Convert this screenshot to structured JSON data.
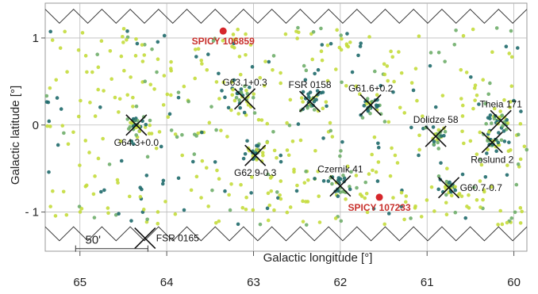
{
  "chart_data": {
    "type": "scatter",
    "xlabel": "Galactic longitude [°]",
    "ylabel": "Galactic latitude [°]",
    "xlim": [
      65.4,
      59.85
    ],
    "ylim": [
      -1.45,
      1.4
    ],
    "x_ticks": [
      65,
      64,
      63,
      62,
      61,
      60
    ],
    "y_ticks": [
      {
        "value": 1,
        "label": "1"
      },
      {
        "value": 0,
        "label": "0"
      },
      {
        "value": -1,
        "label": "- 1"
      }
    ],
    "grid": true,
    "clusters": [
      {
        "name": "G64.3+0.0",
        "l": 64.35,
        "b": 0.0,
        "label_side": "below"
      },
      {
        "name": "G63.1+0.3",
        "l": 63.1,
        "b": 0.3,
        "label_side": "above"
      },
      {
        "name": "FSR 0158",
        "l": 62.35,
        "b": 0.27,
        "label_side": "above"
      },
      {
        "name": "G61.6+0.2",
        "l": 61.65,
        "b": 0.23,
        "label_side": "above"
      },
      {
        "name": "Theia 171",
        "l": 60.15,
        "b": 0.05,
        "label_side": "above"
      },
      {
        "name": "Dolidze 58",
        "l": 60.9,
        "b": -0.13,
        "label_side": "above"
      },
      {
        "name": "Roslund 2",
        "l": 60.25,
        "b": -0.2,
        "label_side": "below"
      },
      {
        "name": "G62.9-0.3",
        "l": 62.98,
        "b": -0.35,
        "label_side": "below"
      },
      {
        "name": "Czernik 41",
        "l": 62.0,
        "b": -0.7,
        "label_side": "above"
      },
      {
        "name": "G60.7-0.7",
        "l": 60.75,
        "b": -0.72,
        "label_side": "right"
      },
      {
        "name": "FSR 0165",
        "l": 64.25,
        "b": -1.3,
        "label_side": "right"
      }
    ],
    "spicy_sources": [
      {
        "name": "SPICY 106859",
        "l": 63.35,
        "b": 1.08,
        "label_side": "below"
      },
      {
        "name": "SPICY 107233",
        "l": 61.55,
        "b": -0.83,
        "label_side": "below"
      }
    ],
    "scale_bar": {
      "label": "50'",
      "length_deg": 0.833
    },
    "colors": {
      "point_light": "#c4dc3c",
      "point_mid": "#6fae6a",
      "point_dark": "#1f6a6b",
      "spicy": "#d6262b",
      "spicy_label": "#c8302c",
      "grid": "#bbbbbb",
      "border_line": "#333333"
    }
  }
}
